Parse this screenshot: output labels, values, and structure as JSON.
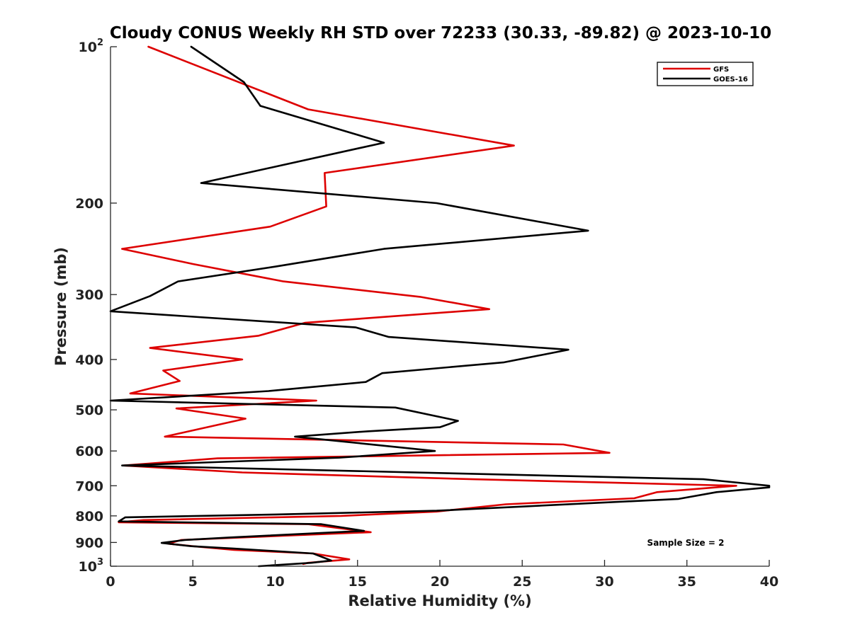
{
  "chart_data": {
    "type": "line",
    "title": "Cloudy CONUS Weekly RH STD over 72233 (30.33, -89.82) @ 2023-10-10",
    "xlabel": "Relative Humidity (%)",
    "ylabel": "Pressure (mb)",
    "xlim": [
      0,
      40
    ],
    "ylim": [
      100,
      1000
    ],
    "yscale": "log",
    "y_reversed": true,
    "grid": false,
    "legend_position": "top-right",
    "x_ticks": [
      "0",
      "5",
      "10",
      "15",
      "20",
      "25",
      "30",
      "35",
      "40"
    ],
    "x_tick_values": [
      0,
      5,
      10,
      15,
      20,
      25,
      30,
      35,
      40
    ],
    "y_ticks": [
      {
        "value": 100,
        "base": "10",
        "exp": "2"
      },
      {
        "value": 200,
        "label": "200"
      },
      {
        "value": 300,
        "label": "300"
      },
      {
        "value": 400,
        "label": "400"
      },
      {
        "value": 500,
        "label": "500"
      },
      {
        "value": 600,
        "label": "600"
      },
      {
        "value": 700,
        "label": "700"
      },
      {
        "value": 800,
        "label": "800"
      },
      {
        "value": 900,
        "label": "900"
      },
      {
        "value": 1000,
        "base": "10",
        "exp": "3"
      }
    ],
    "annotation": "Sample Size = 2",
    "series": [
      {
        "name": "GFS",
        "color": "#dd0000",
        "points": [
          [
            2.3,
            100
          ],
          [
            12.0,
            132
          ],
          [
            24.5,
            155
          ],
          [
            13.0,
            175
          ],
          [
            13.1,
            203
          ],
          [
            9.7,
            222
          ],
          [
            0.7,
            245
          ],
          [
            5.0,
            262
          ],
          [
            10.5,
            283
          ],
          [
            18.8,
            303
          ],
          [
            23.0,
            320
          ],
          [
            11.8,
            340
          ],
          [
            9.0,
            360
          ],
          [
            2.4,
            380
          ],
          [
            8.0,
            400
          ],
          [
            3.2,
            420
          ],
          [
            4.2,
            440
          ],
          [
            1.2,
            465
          ],
          [
            12.5,
            480
          ],
          [
            4.0,
            497
          ],
          [
            8.2,
            520
          ],
          [
            3.3,
            563
          ],
          [
            27.5,
            583
          ],
          [
            30.3,
            605
          ],
          [
            6.5,
            620
          ],
          [
            0.8,
            640
          ],
          [
            8.0,
            660
          ],
          [
            22.0,
            680
          ],
          [
            38.0,
            700
          ],
          [
            33.2,
            720
          ],
          [
            31.8,
            740
          ],
          [
            24.0,
            760
          ],
          [
            19.8,
            785
          ],
          [
            14.0,
            800
          ],
          [
            2.0,
            815
          ],
          [
            0.5,
            823
          ],
          [
            12.0,
            830
          ],
          [
            15.8,
            860
          ],
          [
            4.3,
            890
          ],
          [
            3.5,
            905
          ],
          [
            5.0,
            915
          ],
          [
            7.5,
            930
          ],
          [
            12.3,
            945
          ],
          [
            14.5,
            970
          ],
          [
            12.0,
            985
          ],
          [
            11.7,
            990
          ]
        ]
      },
      {
        "name": "GOES-16",
        "color": "#000000",
        "points": [
          [
            4.9,
            100
          ],
          [
            8.1,
            117
          ],
          [
            9.1,
            130
          ],
          [
            16.6,
            153
          ],
          [
            5.5,
            183
          ],
          [
            19.8,
            200
          ],
          [
            29.0,
            226
          ],
          [
            16.6,
            245
          ],
          [
            10.0,
            265
          ],
          [
            4.1,
            283
          ],
          [
            2.4,
            302
          ],
          [
            0.0,
            323
          ],
          [
            14.9,
            347
          ],
          [
            16.9,
            362
          ],
          [
            27.8,
            383
          ],
          [
            23.9,
            405
          ],
          [
            16.5,
            425
          ],
          [
            15.5,
            442
          ],
          [
            9.6,
            460
          ],
          [
            0.0,
            480
          ],
          [
            17.3,
            495
          ],
          [
            21.1,
            525
          ],
          [
            20.0,
            540
          ],
          [
            15.6,
            550
          ],
          [
            11.2,
            563
          ],
          [
            15.2,
            580
          ],
          [
            19.7,
            600
          ],
          [
            13.9,
            618
          ],
          [
            0.7,
            640
          ],
          [
            36.0,
            680
          ],
          [
            40.0,
            700
          ],
          [
            40.0,
            705
          ],
          [
            36.8,
            720
          ],
          [
            34.5,
            742
          ],
          [
            19.8,
            782
          ],
          [
            10.0,
            795
          ],
          [
            0.9,
            805
          ],
          [
            0.5,
            820
          ],
          [
            12.8,
            830
          ],
          [
            15.4,
            855
          ],
          [
            7.3,
            880
          ],
          [
            4.5,
            890
          ],
          [
            3.1,
            902
          ],
          [
            4.9,
            915
          ],
          [
            7.5,
            925
          ],
          [
            12.3,
            945
          ],
          [
            13.4,
            975
          ],
          [
            12.2,
            985
          ],
          [
            9.0,
            1000
          ]
        ]
      }
    ]
  }
}
